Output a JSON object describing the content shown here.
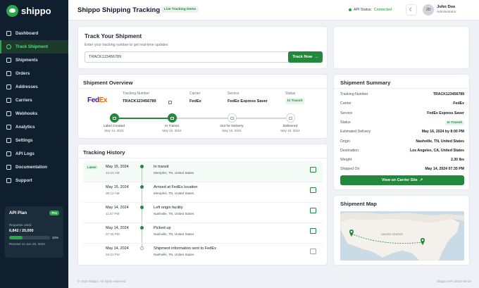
{
  "app": {
    "name": "shippo"
  },
  "sidebar": {
    "items": [
      {
        "label": "Dashboard",
        "icon": "dashboard-icon"
      },
      {
        "label": "Track Shipment",
        "icon": "search-icon",
        "active": true
      },
      {
        "label": "Shipments",
        "icon": "box-icon"
      },
      {
        "label": "Orders",
        "icon": "cart-icon"
      },
      {
        "label": "Addresses",
        "icon": "pin-icon"
      },
      {
        "label": "Carriers",
        "icon": "truck-icon"
      },
      {
        "label": "Webhooks",
        "icon": "webhook-icon"
      },
      {
        "label": "Analytics",
        "icon": "chart-icon"
      },
      {
        "label": "Settings",
        "icon": "gear-icon"
      },
      {
        "label": "API Logs",
        "icon": "code-icon"
      },
      {
        "label": "Documentation",
        "icon": "book-icon"
      },
      {
        "label": "Support",
        "icon": "help-icon"
      }
    ],
    "plan": {
      "title": "API Plan",
      "badge": "Pro",
      "requests_label": "Requests Used",
      "requests_count": "6,842 / 20,000",
      "usage_percent": 33,
      "usage_text": "33%",
      "renewal": "Renews on Jun 20, 2024"
    }
  },
  "header": {
    "title": "Shippo Shipping Tracking",
    "badge": "Live Tracking Demo",
    "api_status_label": "API Status:",
    "api_status_value": "Connected",
    "theme_icon": "moon-icon",
    "avatar_initials": "JD",
    "user_name": "John Doe",
    "user_role": "Administrator"
  },
  "track": {
    "title": "Track Your Shipment",
    "subtitle": "Enter your tracking number to get real-time updates",
    "input_value": "TRACK123456789",
    "button_label": "Track Now"
  },
  "overview": {
    "title": "Shipment Overview",
    "logo_fed": "Fed",
    "logo_ex": "Ex",
    "tracking_label": "Tracking Number",
    "tracking_value": "TRACK123456789",
    "carrier_label": "Carrier",
    "carrier_value": "FedEx",
    "service_label": "Service",
    "service_value": "FedEx Express Saver",
    "status_label": "Status",
    "status_value": "In Transit",
    "steps": [
      {
        "label": "Label Created",
        "date": "May 14, 2024",
        "done": true
      },
      {
        "label": "In Transit",
        "date": "May 15, 2024",
        "done": true
      },
      {
        "label": "Out for Delivery",
        "date": "May 16, 2024",
        "done": false
      },
      {
        "label": "Delivered",
        "date": "May 16, 2024",
        "done": false
      }
    ]
  },
  "history": {
    "title": "Tracking History",
    "latest_badge": "Latest",
    "events": [
      {
        "date": "May 15, 2024",
        "time": "10:24 AM",
        "event": "In transit",
        "location": "Memphis, TN, United States",
        "icon": "truck-icon"
      },
      {
        "date": "May 15, 2024",
        "time": "06:12 AM",
        "event": "Arrived at FedEx location",
        "location": "Memphis, TN, United States",
        "icon": "warehouse-icon"
      },
      {
        "date": "May 14, 2024",
        "time": "11:47 PM",
        "event": "Left origin facility",
        "location": "Nashville, TN, United States",
        "icon": "warehouse-icon"
      },
      {
        "date": "May 14, 2024",
        "time": "07:35 PM",
        "event": "Picked up",
        "location": "Nashville, TN, United States",
        "icon": "package-icon"
      },
      {
        "date": "May 14, 2024",
        "time": "04:21 PM",
        "event": "Shipment information sent to FedEx",
        "location": "Nashville, TN, United States",
        "icon": "document-icon"
      }
    ]
  },
  "summary": {
    "title": "Shipment Summary",
    "rows": [
      {
        "key": "Tracking Number",
        "value": "TRACK123456789"
      },
      {
        "key": "Carrier",
        "value": "FedEx"
      },
      {
        "key": "Service",
        "value": "FedEx Express Saver"
      },
      {
        "key": "Status",
        "value": "In Transit",
        "pill": true
      },
      {
        "key": "Estimated Delivery",
        "value": "May 16, 2024 by 8:00 PM"
      },
      {
        "key": "Origin",
        "value": "Nashville, TN, United States"
      },
      {
        "key": "Destination",
        "value": "Los Angeles, CA, United States"
      },
      {
        "key": "Weight",
        "value": "2.30 lbs"
      },
      {
        "key": "Shipped On",
        "value": "May 14, 2024 07:35 PM"
      }
    ],
    "button_label": "View on Carrier Site"
  },
  "map": {
    "title": "Shipment Map",
    "country_label": "UNITED STATES",
    "colors": {
      "land": "#f4f1ec",
      "water": "#c9dbe6",
      "pin": "#22883b"
    }
  },
  "footer": {
    "left": "© 2024 Shippo. All rights reserved.",
    "right": "Shippo API v2024-05-15"
  }
}
